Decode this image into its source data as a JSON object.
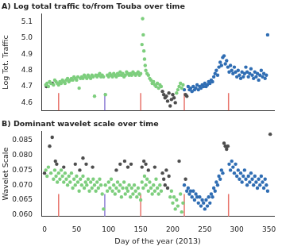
{
  "chart_data": [
    {
      "type": "scatter",
      "title": "A) Log total traffic to/from Touba over time",
      "y_label": "Log Tot. Traffic",
      "xlim": [
        -5,
        358
      ],
      "ylim": [
        4.55,
        5.15
      ],
      "yticks": [
        4.6,
        4.7,
        4.8,
        4.9,
        {
          "value": 5,
          "label": "5.0"
        },
        5.1
      ],
      "grid": false,
      "tick_labels": "y",
      "marker": "circle",
      "series": [
        {
          "color": "#7dce7d",
          "x": [
            2,
            4,
            6,
            8,
            10,
            14,
            16,
            18,
            20,
            22,
            24,
            26,
            28,
            30,
            32,
            34,
            36,
            38,
            40,
            42,
            44,
            46,
            48,
            50,
            52,
            54,
            56,
            58,
            60,
            62,
            64,
            66,
            68,
            70,
            72,
            74,
            76,
            78,
            80,
            82,
            84,
            86,
            88,
            90,
            92,
            95,
            98,
            100,
            102,
            104,
            106,
            108,
            110,
            112,
            114,
            116,
            118,
            120,
            122,
            124,
            126,
            128,
            130,
            132,
            134,
            136,
            138,
            140,
            142,
            144,
            146,
            148,
            150,
            152,
            153,
            154,
            155,
            156,
            157,
            158,
            160,
            162,
            164,
            166,
            168,
            170,
            172,
            174,
            176,
            178,
            180,
            182,
            206,
            208,
            210,
            212,
            214,
            216
          ],
          "values": [
            4.71,
            4.72,
            4.7,
            4.73,
            4.72,
            4.71,
            4.74,
            4.73,
            4.72,
            4.71,
            4.73,
            4.72,
            4.74,
            4.73,
            4.72,
            4.74,
            4.75,
            4.73,
            4.74,
            4.75,
            4.74,
            4.76,
            4.75,
            4.74,
            4.76,
            4.69,
            4.75,
            4.76,
            4.75,
            4.77,
            4.76,
            4.75,
            4.77,
            4.76,
            4.75,
            4.77,
            4.76,
            4.64,
            4.77,
            4.76,
            4.77,
            4.78,
            4.76,
            4.77,
            4.76,
            4.65,
            4.77,
            4.76,
            4.78,
            4.77,
            4.76,
            4.78,
            4.77,
            4.76,
            4.78,
            4.77,
            4.79,
            4.77,
            4.78,
            4.76,
            4.77,
            4.79,
            4.78,
            4.77,
            4.78,
            4.77,
            4.79,
            4.78,
            4.77,
            4.78,
            4.79,
            4.77,
            4.78,
            4.96,
            5.12,
            5.02,
            4.92,
            4.87,
            4.83,
            4.8,
            4.78,
            4.77,
            4.75,
            4.74,
            4.72,
            4.73,
            4.71,
            4.7,
            4.72,
            4.69,
            4.71,
            4.7,
            4.66,
            4.68,
            4.7,
            4.72,
            4.69,
            4.71
          ]
        },
        {
          "color": "#4d4d4d",
          "x": [
            3,
            12,
            184,
            186,
            188,
            190,
            192,
            194,
            196,
            198,
            200,
            202,
            204,
            220,
            222
          ],
          "values": [
            4.7,
            4.72,
            4.67,
            4.65,
            4.63,
            4.64,
            4.61,
            4.66,
            4.58,
            4.62,
            4.65,
            4.63,
            4.6,
            4.65,
            4.64
          ]
        },
        {
          "color": "#2f6db3",
          "x": [
            218,
            224,
            226,
            228,
            230,
            232,
            234,
            236,
            238,
            240,
            242,
            244,
            246,
            248,
            250,
            252,
            254,
            256,
            258,
            260,
            262,
            264,
            266,
            268,
            270,
            272,
            274,
            276,
            278,
            280,
            282,
            284,
            286,
            288,
            290,
            292,
            294,
            296,
            298,
            300,
            302,
            304,
            306,
            308,
            310,
            312,
            314,
            316,
            318,
            320,
            322,
            324,
            326,
            328,
            330,
            332,
            334,
            336,
            338,
            340,
            342,
            344,
            346,
            348
          ],
          "values": [
            4.68,
            4.7,
            4.68,
            4.69,
            4.67,
            4.7,
            4.68,
            4.69,
            4.71,
            4.68,
            4.7,
            4.69,
            4.71,
            4.7,
            4.72,
            4.7,
            4.71,
            4.73,
            4.72,
            4.74,
            4.73,
            4.76,
            4.78,
            4.8,
            4.77,
            4.82,
            4.85,
            4.83,
            4.88,
            4.89,
            4.84,
            4.86,
            4.82,
            4.79,
            4.83,
            4.8,
            4.78,
            4.82,
            4.79,
            4.76,
            4.8,
            4.77,
            4.75,
            4.79,
            4.76,
            4.78,
            4.82,
            4.79,
            4.76,
            4.78,
            4.81,
            4.77,
            4.75,
            4.79,
            4.76,
            4.78,
            4.74,
            4.77,
            4.8,
            4.76,
            4.78,
            4.75,
            4.77,
            5.02
          ]
        }
      ],
      "vlines": {
        "x": [
          22,
          94,
          150,
          218,
          287
        ],
        "colors": [
          "#e8736b",
          "#8f7fd6",
          "#e8736b",
          "#e8736b",
          "#e8736b"
        ],
        "y_from": 4.55,
        "y_to": 4.66
      }
    },
    {
      "type": "scatter",
      "title": "B) Dominant wavelet scale over time",
      "x_label": "Day of the year (2013)",
      "y_label": "Wavelet Scale",
      "xlim": [
        -5,
        358
      ],
      "xticks": [
        0,
        50,
        100,
        150,
        200,
        250,
        300,
        350
      ],
      "ylim": [
        0.0595,
        0.088
      ],
      "yticks": [
        {
          "value": 0.06,
          "label": "0.060"
        },
        0.065,
        {
          "value": 0.07,
          "label": "0.070"
        },
        0.075,
        {
          "value": 0.08,
          "label": "0.080"
        },
        0.085
      ],
      "grid": false,
      "marker": "circle",
      "series": [
        {
          "color": "#7dce7d",
          "x": [
            2,
            4,
            6,
            10,
            14,
            16,
            18,
            20,
            22,
            24,
            26,
            28,
            30,
            32,
            34,
            36,
            38,
            40,
            42,
            44,
            46,
            48,
            50,
            52,
            54,
            56,
            58,
            60,
            62,
            64,
            66,
            68,
            70,
            72,
            74,
            76,
            78,
            80,
            82,
            84,
            86,
            88,
            90,
            92,
            95,
            98,
            100,
            102,
            104,
            106,
            108,
            110,
            112,
            114,
            116,
            118,
            120,
            122,
            124,
            126,
            128,
            130,
            132,
            134,
            136,
            138,
            140,
            142,
            144,
            146,
            148,
            150,
            152,
            154,
            156,
            158,
            160,
            162,
            164,
            166,
            168,
            170,
            172,
            174,
            176,
            178,
            180,
            182,
            196,
            198,
            200,
            202,
            204,
            206,
            208,
            212,
            214,
            216
          ],
          "values": [
            0.075,
            0.073,
            0.076,
            0.074,
            0.072,
            0.075,
            0.073,
            0.071,
            0.074,
            0.072,
            0.075,
            0.073,
            0.071,
            0.074,
            0.072,
            0.07,
            0.073,
            0.071,
            0.074,
            0.069,
            0.072,
            0.07,
            0.073,
            0.071,
            0.068,
            0.072,
            0.07,
            0.073,
            0.069,
            0.071,
            0.07,
            0.072,
            0.068,
            0.071,
            0.069,
            0.072,
            0.07,
            0.068,
            0.071,
            0.069,
            0.072,
            0.07,
            0.067,
            0.062,
            0.07,
            0.068,
            0.071,
            0.069,
            0.072,
            0.068,
            0.07,
            0.067,
            0.069,
            0.071,
            0.068,
            0.07,
            0.066,
            0.069,
            0.071,
            0.067,
            0.069,
            0.068,
            0.07,
            0.066,
            0.069,
            0.067,
            0.07,
            0.068,
            0.066,
            0.069,
            0.067,
            0.065,
            0.071,
            0.069,
            0.073,
            0.07,
            0.072,
            0.068,
            0.071,
            0.069,
            0.067,
            0.07,
            0.068,
            0.072,
            0.069,
            0.067,
            0.07,
            0.068,
            0.066,
            0.068,
            0.064,
            0.066,
            0.062,
            0.065,
            0.063,
            0.067,
            0.061,
            0.064
          ]
        },
        {
          "color": "#4d4d4d",
          "x": [
            0,
            8,
            12,
            17,
            19,
            30,
            48,
            55,
            60,
            65,
            75,
            112,
            118,
            125,
            130,
            135,
            152,
            155,
            158,
            162,
            172,
            184,
            186,
            188,
            190,
            192,
            194,
            210,
            220,
            280,
            282,
            284,
            286,
            352
          ],
          "values": [
            0.074,
            0.083,
            0.086,
            0.078,
            0.077,
            0.076,
            0.077,
            0.075,
            0.079,
            0.077,
            0.076,
            0.075,
            0.077,
            0.078,
            0.076,
            0.077,
            0.076,
            0.078,
            0.077,
            0.075,
            0.076,
            0.074,
            0.072,
            0.07,
            0.075,
            0.069,
            0.073,
            0.078,
            0.072,
            0.084,
            0.083,
            0.082,
            0.083,
            0.087
          ]
        },
        {
          "color": "#2f6db3",
          "x": [
            218,
            222,
            224,
            226,
            228,
            230,
            232,
            234,
            236,
            238,
            240,
            242,
            244,
            246,
            248,
            250,
            252,
            254,
            256,
            258,
            260,
            262,
            264,
            266,
            268,
            270,
            272,
            274,
            276,
            278,
            288,
            290,
            292,
            294,
            296,
            298,
            300,
            302,
            304,
            306,
            308,
            310,
            312,
            314,
            316,
            318,
            320,
            322,
            324,
            326,
            328,
            330,
            332,
            334,
            336,
            338,
            340,
            342,
            344,
            346,
            348
          ],
          "values": [
            0.07,
            0.068,
            0.069,
            0.067,
            0.068,
            0.066,
            0.068,
            0.065,
            0.067,
            0.066,
            0.064,
            0.066,
            0.063,
            0.065,
            0.064,
            0.062,
            0.065,
            0.063,
            0.066,
            0.064,
            0.067,
            0.066,
            0.069,
            0.068,
            0.071,
            0.07,
            0.073,
            0.072,
            0.075,
            0.074,
            0.077,
            0.075,
            0.078,
            0.076,
            0.074,
            0.077,
            0.073,
            0.075,
            0.072,
            0.074,
            0.071,
            0.073,
            0.075,
            0.072,
            0.07,
            0.073,
            0.071,
            0.074,
            0.072,
            0.07,
            0.073,
            0.071,
            0.069,
            0.072,
            0.07,
            0.073,
            0.071,
            0.069,
            0.072,
            0.07,
            0.068
          ]
        }
      ],
      "vlines": {
        "x": [
          22,
          94,
          150,
          218,
          287
        ],
        "colors": [
          "#e8736b",
          "#8f7fd6",
          "#e8736b",
          "#e8736b",
          "#e8736b"
        ],
        "y_from": 0.0595,
        "y_to": 0.067
      }
    }
  ]
}
